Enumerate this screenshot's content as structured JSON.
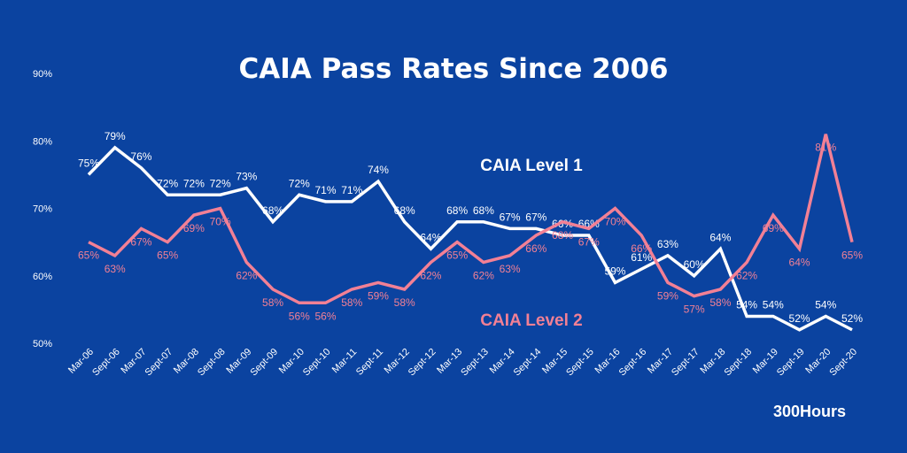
{
  "chart_data": {
    "type": "line",
    "title": "CAIA Pass Rates Since 2006",
    "brand": "300Hours",
    "categories": [
      "Mar-06",
      "Sept-06",
      "Mar-07",
      "Sept-07",
      "Mar-08",
      "Sept-08",
      "Mar-09",
      "Sept-09",
      "Mar-10",
      "Sept-10",
      "Mar-11",
      "Sept-11",
      "Mar-12",
      "Sept-12",
      "Mar-13",
      "Sept-13",
      "Mar-14",
      "Sept-14",
      "Mar-15",
      "Sept-15",
      "Mar-16",
      "Sept-16",
      "Mar-17",
      "Sept-17",
      "Mar-18",
      "Sept-18",
      "Mar-19",
      "Sept-19",
      "Mar-20",
      "Sept-20"
    ],
    "yticks": [
      "50%",
      "60%",
      "70%",
      "80%",
      "90%"
    ],
    "ylim": [
      50,
      90
    ],
    "grid": false,
    "series": [
      {
        "name": "CAIA Level 1",
        "color": "#ffffff",
        "values": [
          75,
          79,
          76,
          72,
          72,
          72,
          73,
          68,
          72,
          71,
          71,
          74,
          68,
          64,
          68,
          68,
          67,
          67,
          66,
          66,
          59,
          61,
          63,
          60,
          64,
          54,
          54,
          52,
          54,
          52
        ],
        "labels": [
          "75%",
          "79%",
          "76%",
          "72%",
          "72%",
          "72%",
          "73%",
          "68%",
          "72%",
          "71%",
          "71%",
          "74%",
          "68%",
          "64%",
          "68%",
          "68%",
          "67%",
          "67%",
          "66%",
          "66%",
          "59%",
          "61%",
          "63%",
          "60%",
          "64%",
          "54%",
          "54%",
          "52%",
          "54%",
          "52%"
        ]
      },
      {
        "name": "CAIA Level 2",
        "color": "#f28095",
        "values": [
          65,
          63,
          67,
          65,
          69,
          70,
          62,
          58,
          56,
          56,
          58,
          59,
          58,
          62,
          65,
          62,
          63,
          66,
          68,
          67,
          70,
          66,
          59,
          57,
          58,
          62,
          69,
          64,
          81,
          65
        ],
        "labels": [
          "65%",
          "63%",
          "67%",
          "65%",
          "69%",
          "70%",
          "62%",
          "58%",
          "56%",
          "56%",
          "58%",
          "59%",
          "58%",
          "62%",
          "65%",
          "62%",
          "63%",
          "66%",
          "68%",
          "67%",
          "70%",
          "66%",
          "59%",
          "57%",
          "58%",
          "62%",
          "69%",
          "64%",
          "81%",
          "65%"
        ]
      }
    ]
  }
}
